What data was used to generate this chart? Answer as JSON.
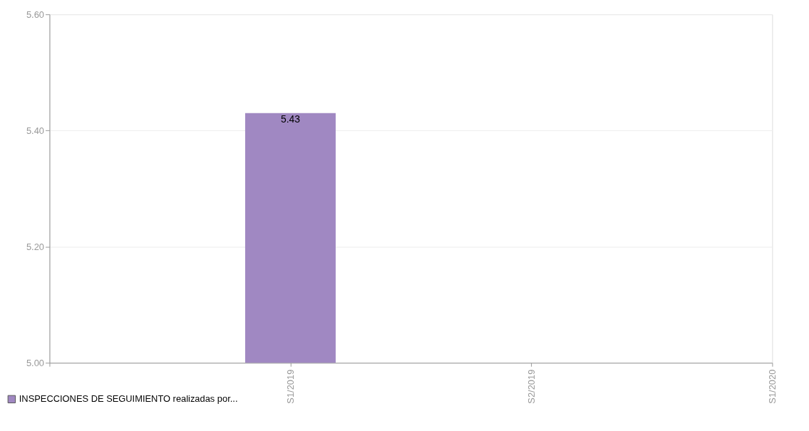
{
  "chart_data": {
    "type": "bar",
    "categories": [
      null,
      "S1/2019",
      "S2/2019",
      "S1/2020"
    ],
    "series": [
      {
        "name": "INSPECCIONES DE SEGUIMIENTO realizadas por...",
        "color": "#a088c2",
        "values": [
          null,
          5.43,
          null,
          null
        ]
      }
    ],
    "ylim": [
      5.0,
      5.6
    ],
    "yticks": [
      {
        "value": 5.0,
        "label": "5.00"
      },
      {
        "value": 5.2,
        "label": "5.20"
      },
      {
        "value": 5.4,
        "label": "5.40"
      },
      {
        "value": 5.6,
        "label": "5.60"
      }
    ],
    "grid": "y",
    "legend": "bottom left",
    "data_labels": true
  }
}
